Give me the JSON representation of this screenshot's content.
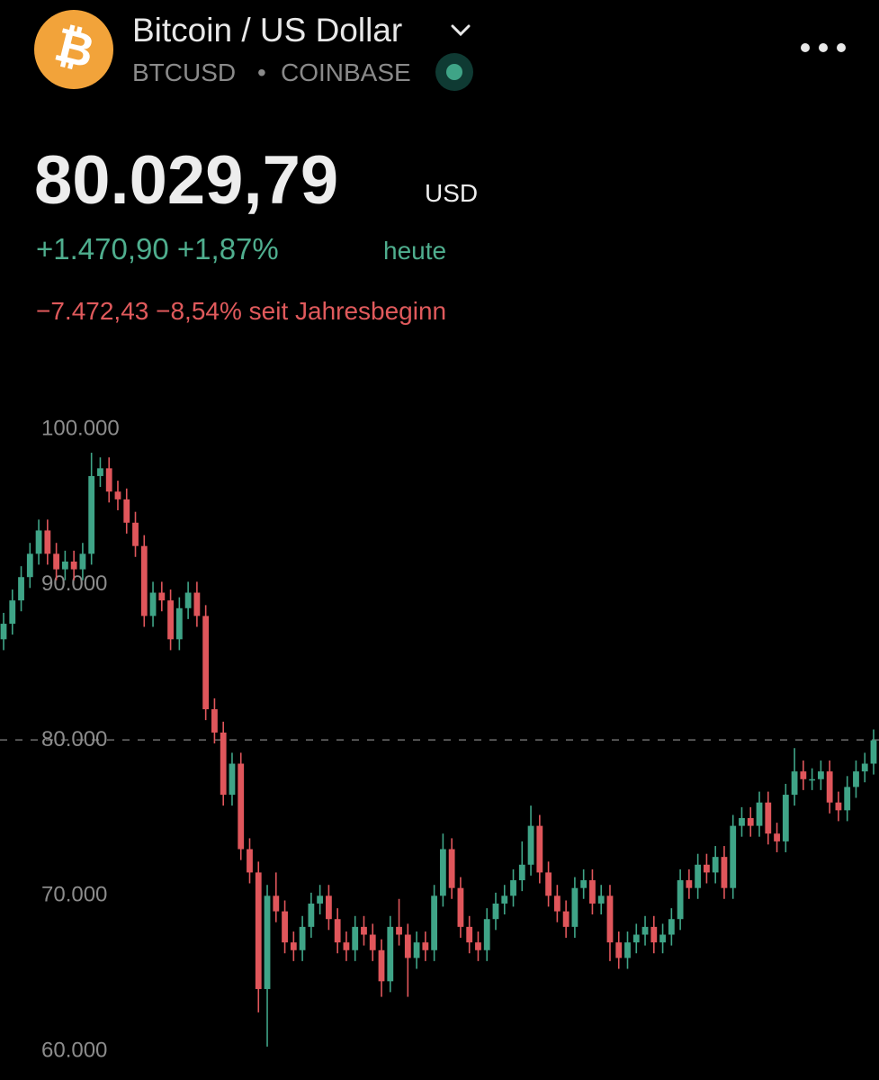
{
  "header": {
    "logo_symbol": "₿",
    "title": "Bitcoin / US Dollar",
    "symbol": "BTCUSD",
    "separator": "•",
    "exchange": "COINBASE",
    "price": "80.029,79",
    "currency": "USD",
    "change_today": "+1.470,90 +1,87%",
    "change_today_label": "heute",
    "change_ytd": "−7.472,43 −8,54% seit Jahresbeginn"
  },
  "chart_data": {
    "type": "candlestick",
    "up_color": "#3fa487",
    "down_color": "#e0565b",
    "last_price": 80029.79,
    "ylim": [
      58150,
      102150
    ],
    "yticks": [
      {
        "value": 60000,
        "label": "60.000"
      },
      {
        "value": 70000,
        "label": "70.000"
      },
      {
        "value": 80000,
        "label": "80.000"
      },
      {
        "value": 90000,
        "label": "90.000"
      },
      {
        "value": 100000,
        "label": "100.000"
      }
    ],
    "open": [
      86500,
      87500,
      89000,
      90500,
      92000,
      93500,
      92000,
      91000,
      91500,
      91000,
      92000,
      97000,
      97500,
      96000,
      95500,
      94000,
      92500,
      88000,
      89500,
      89000,
      86500,
      88500,
      89500,
      88000,
      82000,
      80500,
      76500,
      78500,
      73000,
      71500,
      64000,
      70000,
      69000,
      67000,
      66500,
      68000,
      69500,
      70000,
      68500,
      67000,
      66500,
      68000,
      67500,
      66500,
      64500,
      68000,
      67500,
      66000,
      67000,
      66500,
      70000,
      73000,
      70500,
      68000,
      67000,
      66500,
      68500,
      69500,
      70000,
      71000,
      72000,
      74500,
      71500,
      70000,
      69000,
      68000,
      70500,
      71000,
      69500,
      70000,
      67000,
      66000,
      67000,
      67500,
      68000,
      67000,
      67500,
      68500,
      71000,
      70500,
      72000,
      71500,
      72500,
      70500,
      74500,
      75000,
      74500,
      76000,
      74000,
      73500,
      76500,
      78000,
      77500,
      77500,
      78000,
      76000,
      75500,
      77000,
      78000,
      78500
    ],
    "high": [
      88200,
      89700,
      91200,
      92700,
      94200,
      94200,
      92700,
      92200,
      92200,
      92700,
      98500,
      98200,
      98200,
      96700,
      96200,
      94700,
      93200,
      90200,
      90200,
      89700,
      89200,
      90200,
      90200,
      88700,
      82700,
      81200,
      79200,
      79200,
      73700,
      72200,
      70700,
      71500,
      69700,
      67700,
      68700,
      70200,
      70700,
      70700,
      69200,
      67700,
      68700,
      68700,
      68200,
      67200,
      68700,
      69800,
      68200,
      67700,
      67700,
      70700,
      74000,
      73700,
      71200,
      68700,
      67700,
      69200,
      70200,
      70700,
      71700,
      73500,
      75800,
      75200,
      72200,
      70700,
      69700,
      71200,
      71700,
      71700,
      70700,
      70700,
      67700,
      67700,
      68200,
      68700,
      68700,
      68200,
      69200,
      71700,
      71700,
      72700,
      72700,
      73200,
      73200,
      75200,
      75700,
      75700,
      76700,
      76700,
      74700,
      77200,
      79500,
      78700,
      78200,
      78700,
      78700,
      76700,
      77700,
      78700,
      79200,
      80700
    ],
    "low": [
      85800,
      86800,
      88300,
      89800,
      91300,
      91300,
      90300,
      90300,
      90300,
      90300,
      91300,
      96300,
      95300,
      94800,
      93300,
      91800,
      87300,
      87300,
      88300,
      85800,
      85800,
      87800,
      87300,
      81300,
      79800,
      75800,
      75800,
      72300,
      70800,
      62500,
      60300,
      68300,
      66300,
      65800,
      65800,
      67300,
      68800,
      67800,
      66300,
      65800,
      65800,
      66800,
      65800,
      63500,
      63800,
      66800,
      63500,
      65300,
      65800,
      65800,
      69300,
      69800,
      67300,
      66300,
      65800,
      65800,
      67800,
      68800,
      69300,
      70300,
      71300,
      70800,
      69300,
      68300,
      67300,
      67300,
      69800,
      68800,
      68800,
      65800,
      65300,
      65300,
      66300,
      66800,
      66300,
      66300,
      66800,
      67800,
      69800,
      69800,
      70800,
      70800,
      69800,
      69800,
      73800,
      73800,
      73800,
      73300,
      72800,
      72800,
      75800,
      76800,
      76800,
      76800,
      75300,
      74800,
      74800,
      76300,
      77300,
      77800
    ],
    "close": [
      87500,
      89000,
      90500,
      92000,
      93500,
      92000,
      91000,
      91500,
      91000,
      92000,
      97000,
      97500,
      96000,
      95500,
      94000,
      92500,
      88000,
      89500,
      89000,
      86500,
      88500,
      89500,
      88000,
      82000,
      80500,
      76500,
      78500,
      73000,
      71500,
      64000,
      70000,
      69000,
      67000,
      66500,
      68000,
      69500,
      70000,
      68500,
      67000,
      66500,
      68000,
      67500,
      66500,
      64500,
      68000,
      67500,
      66000,
      67000,
      66500,
      70000,
      73000,
      70500,
      68000,
      67000,
      66500,
      68500,
      69500,
      70000,
      71000,
      72000,
      74500,
      71500,
      70000,
      69000,
      68000,
      70500,
      71000,
      69500,
      70000,
      67000,
      66000,
      67000,
      67500,
      68000,
      67000,
      67500,
      68500,
      71000,
      70500,
      72000,
      71500,
      72500,
      70500,
      74500,
      75000,
      74500,
      76000,
      74000,
      73500,
      76500,
      78000,
      77500,
      77500,
      78000,
      76000,
      75500,
      77000,
      78000,
      78500,
      80000
    ]
  }
}
